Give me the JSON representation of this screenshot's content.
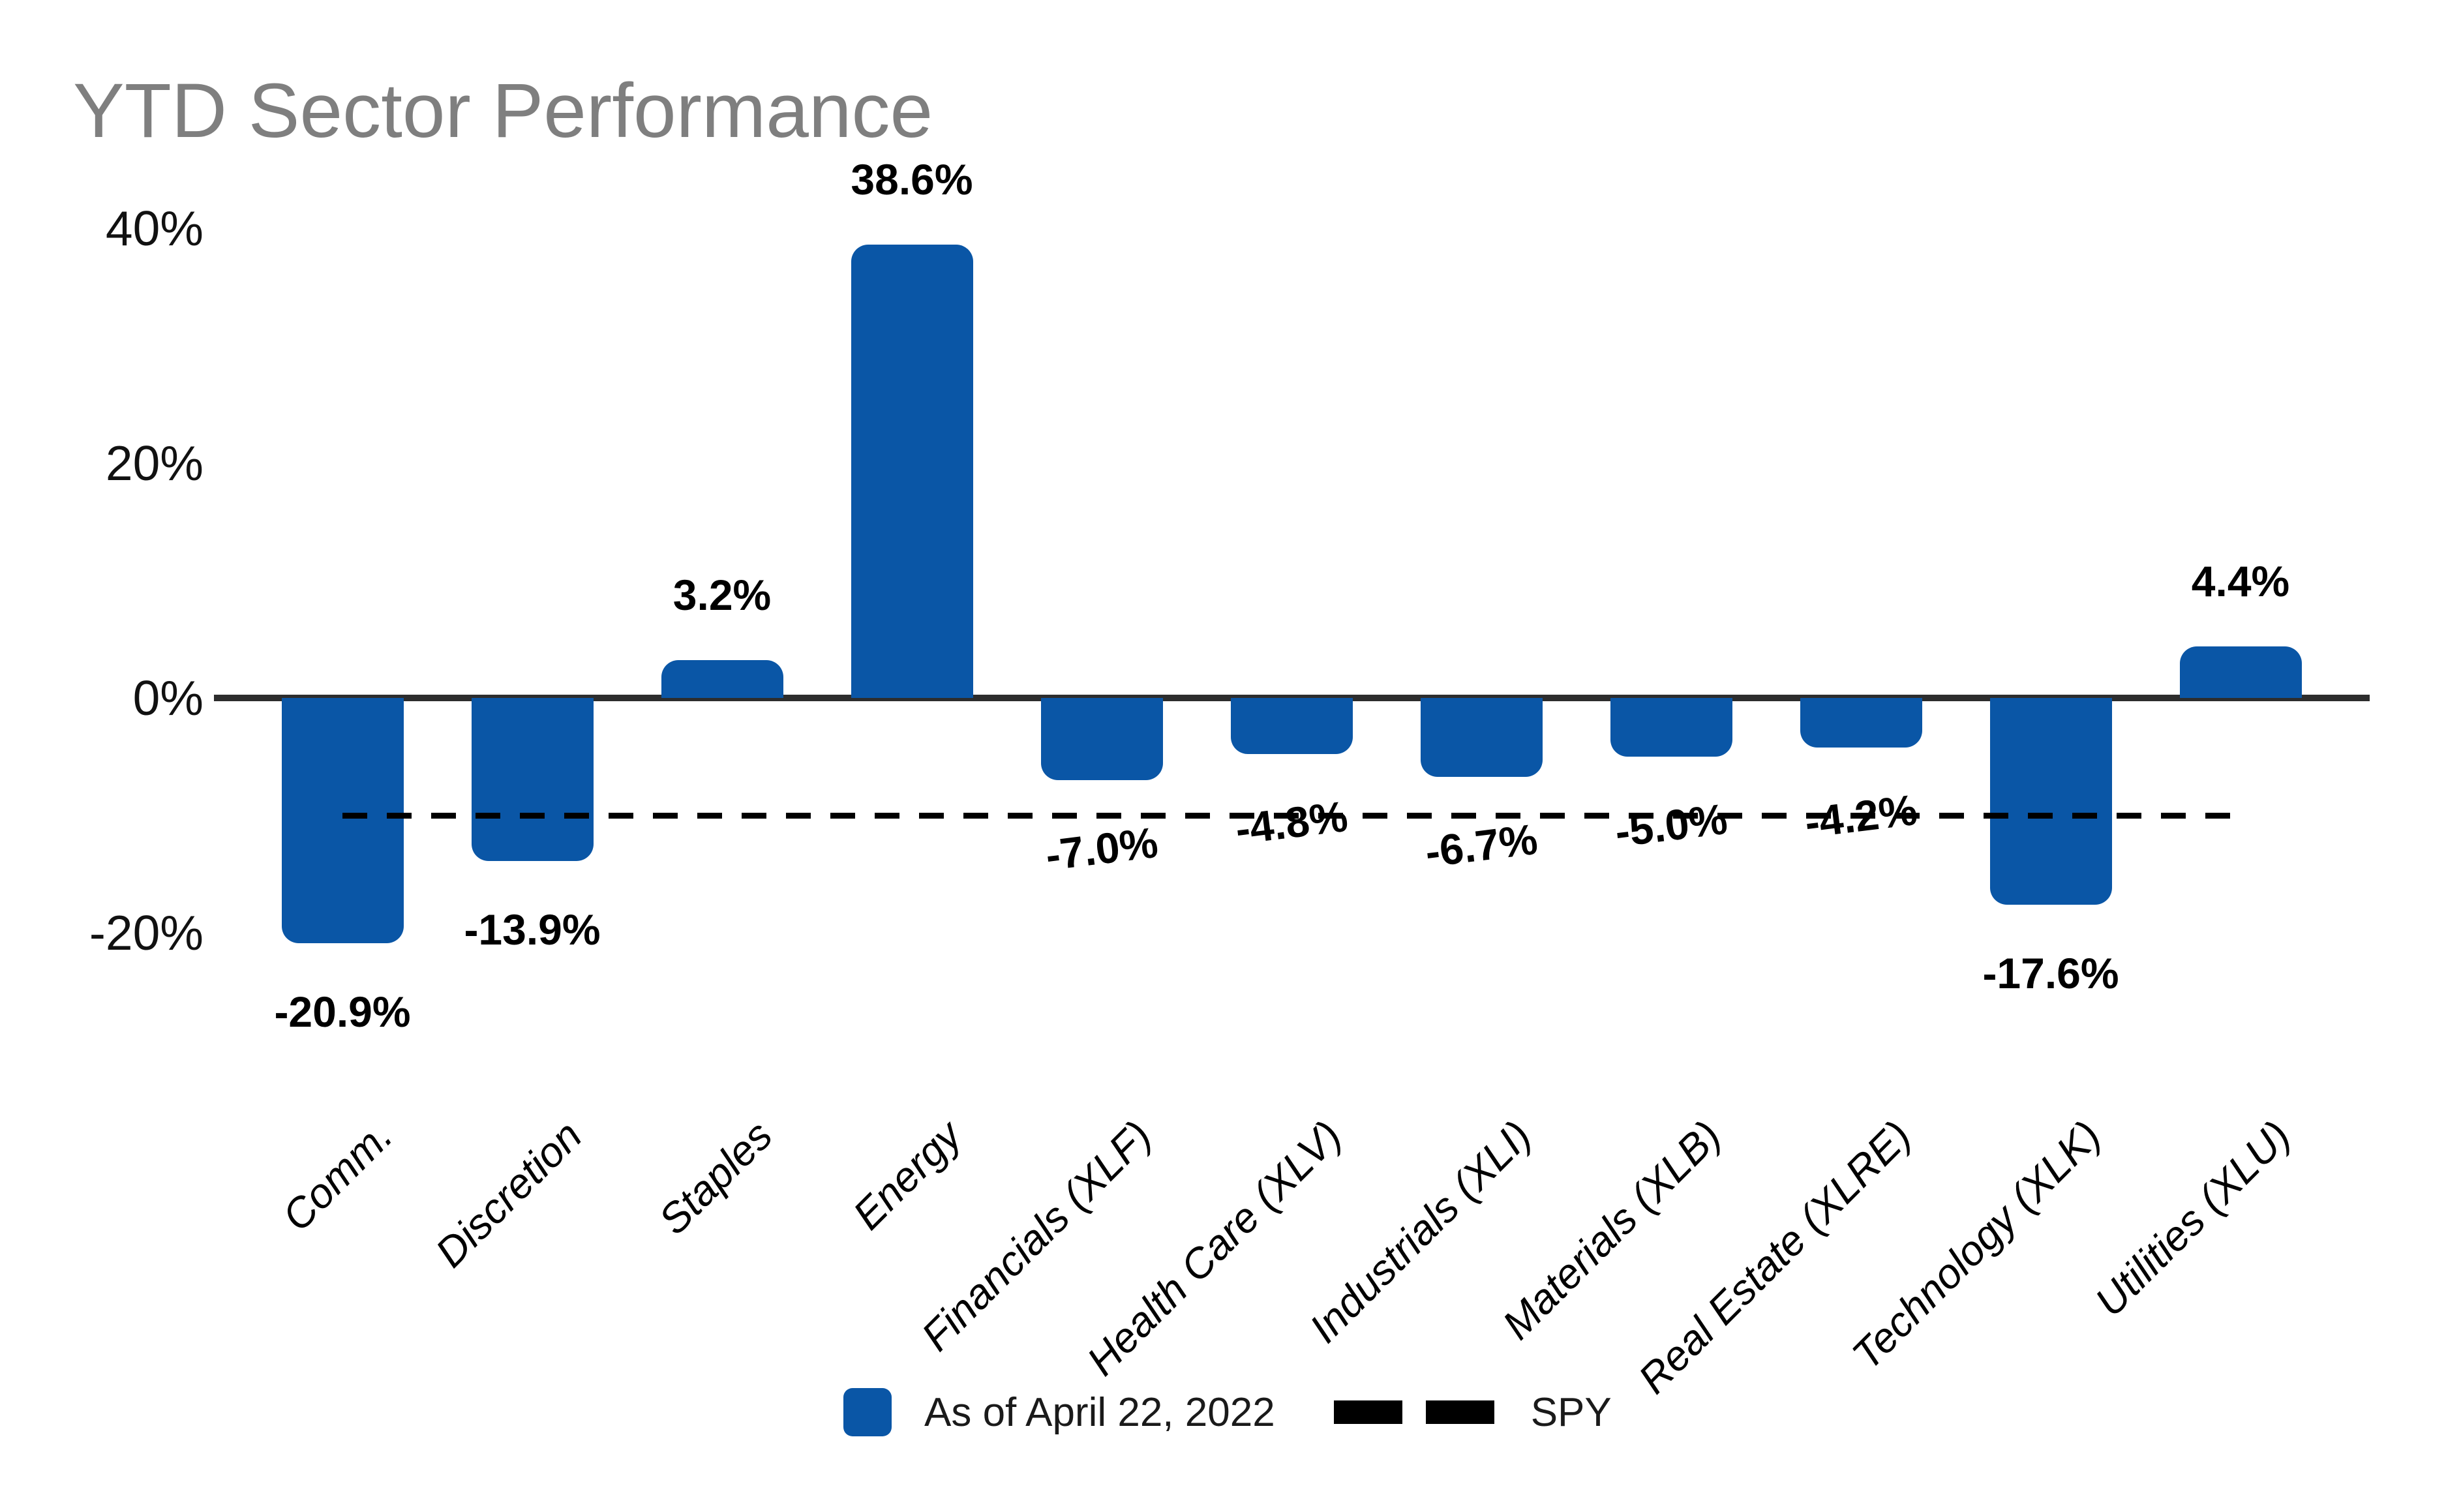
{
  "title": "YTD Sector Performance",
  "chart_data": {
    "type": "bar",
    "title": "YTD Sector Performance",
    "categories": [
      "Comm.",
      "Discretion",
      "Staples",
      "Energy",
      "Financials (XLF)",
      "Health Care (XLV)",
      "Industrials (XLI)",
      "Materials (XLB)",
      "Real Estate (XLRE)",
      "Technology (XLK)",
      "Utilities (XLU)"
    ],
    "values": [
      -20.9,
      -13.9,
      3.2,
      38.6,
      -7.0,
      -4.8,
      -6.7,
      -5.0,
      -4.2,
      -17.6,
      4.4
    ],
    "value_labels": [
      "-20.9%",
      "-13.9%",
      "3.2%",
      "38.6%",
      "-7.0%",
      "-4.8%",
      "-6.7%",
      "-5.0%",
      "-4.2%",
      "-17.6%",
      "4.4%"
    ],
    "y_axis": {
      "ticks": [
        {
          "label": "40%",
          "value": 40
        },
        {
          "label": "20%",
          "value": 20
        },
        {
          "label": "0%",
          "value": 0
        },
        {
          "label": "-20%",
          "value": -20
        }
      ],
      "ylim": [
        -26,
        44
      ]
    },
    "series": [
      {
        "name": "As of April 22, 2022",
        "type": "bar",
        "color": "#0A56A6"
      },
      {
        "name": "SPY",
        "type": "dashed-line",
        "value": -10,
        "color": "#000000"
      }
    ],
    "grid": false,
    "legend_position": "bottom-center"
  },
  "legend": {
    "bar_series_label": "As of April 22, 2022",
    "spy_label": "SPY"
  },
  "colors": {
    "bar": "#0A56A6",
    "axis": "#2d2d2d",
    "dash": "#000000",
    "title": "#7f7f7f",
    "tick": "#111111",
    "value_label": "#000000"
  }
}
